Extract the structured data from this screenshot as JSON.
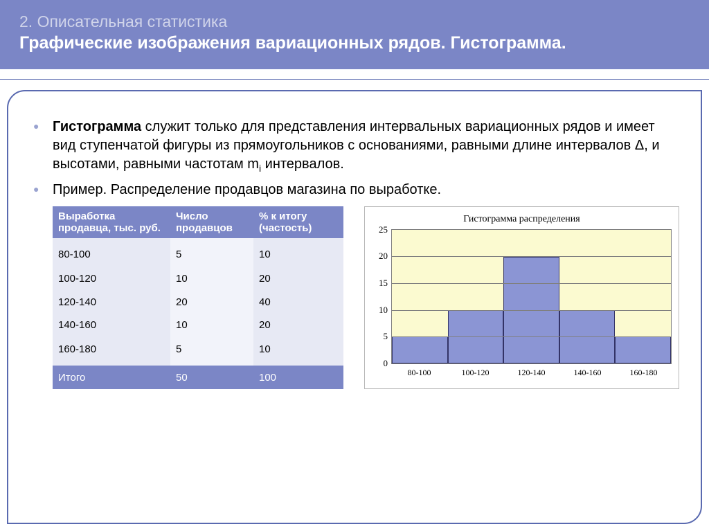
{
  "header": {
    "section": "2. Описательная статистика",
    "title": "Графические изображения вариационных рядов. Гистограмма."
  },
  "bullets": {
    "b1_term": "Гистограмма",
    "b1_rest": " служит только для представления интервальных вариационных рядов и имеет вид ступенчатой фигуры из прямоугольников с основаниями, равными длине интервалов Δ, и высотами, равными частотам m",
    "b1_sub": "i",
    "b1_tail": " интервалов.",
    "b2": "Пример. Распределение продавцов магазина по выработке."
  },
  "table": {
    "headers": [
      "Выработка продавца, тыс. руб.",
      "Число продавцов",
      "% к итогу (частость)"
    ],
    "rows": [
      [
        "80-100",
        "5",
        "10"
      ],
      [
        "100-120",
        "10",
        "20"
      ],
      [
        "120-140",
        "20",
        "40"
      ],
      [
        "140-160",
        "10",
        "20"
      ],
      [
        "160-180",
        "5",
        "10"
      ]
    ],
    "total": [
      "Итого",
      "50",
      "100"
    ],
    "header_bg": "#7b86c6",
    "header_color": "#ffffff",
    "col_bg": [
      "#e7e9f4",
      "#f2f3fa",
      "#e7e9f4"
    ]
  },
  "chart": {
    "type": "histogram",
    "title": "Гистограмма распределения",
    "categories": [
      "80-100",
      "100-120",
      "120-140",
      "140-160",
      "160-180"
    ],
    "values": [
      5,
      10,
      20,
      10,
      5
    ],
    "bar_color": "#8b95d4",
    "bar_border": "#333366",
    "plot_bg": "#fbfad0",
    "ylim": [
      0,
      25
    ],
    "ytick_step": 5,
    "grid_color": "#808080",
    "label_fontsize": 12,
    "title_fontsize": 14
  }
}
